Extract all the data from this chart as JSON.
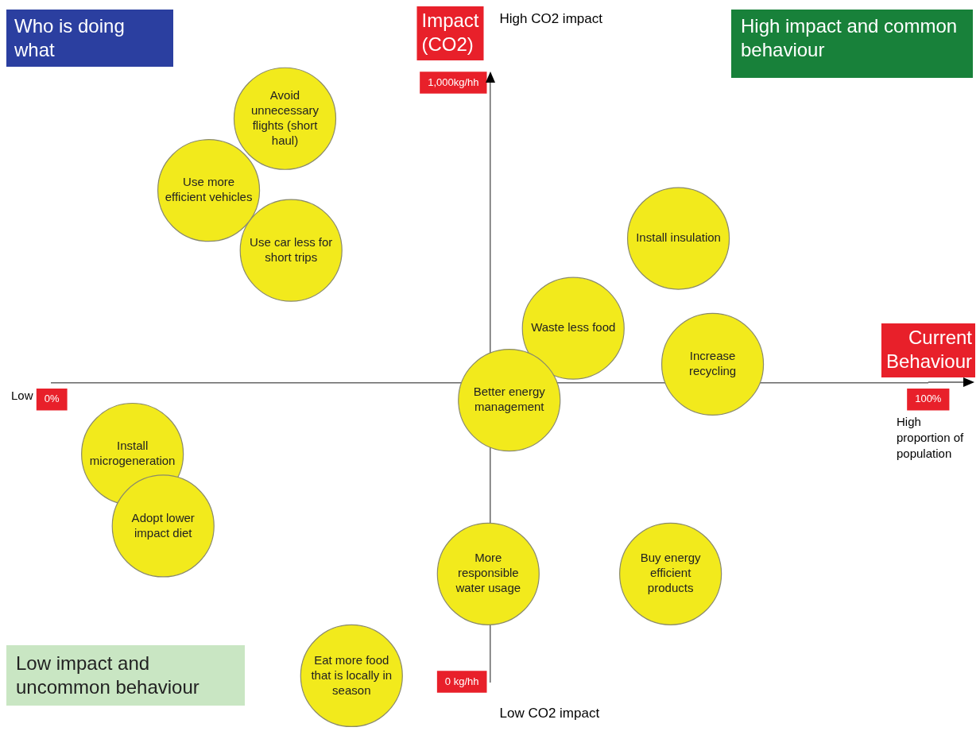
{
  "chart_data": {
    "type": "bubble",
    "title": "Who is doing what",
    "xlabel": "Current Behaviour",
    "ylabel": "Impact (CO2)",
    "xlim": [
      0,
      100
    ],
    "ylim": [
      0,
      1000
    ],
    "xticks": [
      {
        "value": 0,
        "label": "0%"
      },
      {
        "value": 100,
        "label": "100%"
      }
    ],
    "yticks": [
      {
        "value": 0,
        "label": "0 kg/hh"
      },
      {
        "value": 1000,
        "label": "1,000kg/hh"
      }
    ],
    "x": [
      26.6,
      17.9,
      27.3,
      71.5,
      59.5,
      75.4,
      52.2,
      9.2,
      12.7,
      49.8,
      70.6,
      34.2
    ],
    "series": [
      {
        "color": "#f2ea1c",
        "values": [
          940,
          820,
          720,
          740,
          590,
          530,
          470,
          380,
          260,
          180,
          180,
          10
        ],
        "sizes": [
          1,
          1,
          1,
          1,
          1,
          1,
          1,
          1,
          1,
          1,
          1,
          1
        ]
      }
    ],
    "grid": false,
    "legend": false,
    "marker": "circle",
    "annotations": [
      "High CO2 impact",
      "Low CO2 impact",
      "Low",
      "High proportion of population",
      "High impact and common behaviour",
      "Low impact and uncommon behaviour",
      {
        "text": "Avoid unnecessary flights (short haul)",
        "x": 26.6,
        "y": 940
      },
      {
        "text": "Use more efficient vehicles",
        "x": 17.9,
        "y": 820
      },
      {
        "text": "Use car less for short trips",
        "x": 27.3,
        "y": 720
      },
      {
        "text": "Install insulation",
        "x": 71.5,
        "y": 740
      },
      {
        "text": "Waste less food",
        "x": 59.5,
        "y": 590
      },
      {
        "text": "Increase recycling",
        "x": 75.4,
        "y": 530
      },
      {
        "text": "Better energy management",
        "x": 52.2,
        "y": 470
      },
      {
        "text": "Install microgeneration",
        "x": 9.2,
        "y": 380
      },
      {
        "text": "Adopt lower impact diet",
        "x": 12.7,
        "y": 260
      },
      {
        "text": "More responsible water usage",
        "x": 49.8,
        "y": 180
      },
      {
        "text": "Buy energy efficient products",
        "x": 70.6,
        "y": 180
      },
      {
        "text": "Eat more food that is locally in season",
        "x": 34.2,
        "y": 10
      }
    ]
  }
}
